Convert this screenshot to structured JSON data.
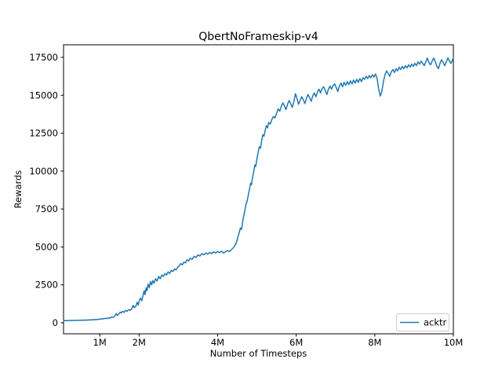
{
  "colors": {
    "accent_line": "#1f77b4",
    "legend_border": "#cccccc",
    "text": "#000000",
    "background": "#ffffff"
  },
  "chart_data": {
    "type": "line",
    "title": "QbertNoFrameskip-v4",
    "xlabel": "Number of Timesteps",
    "ylabel": "Rewards",
    "x_unit": "millions of timesteps",
    "grid": false,
    "xlim": [
      0.078,
      10.0
    ],
    "ylim": [
      -725,
      18328
    ],
    "x_ticks": [
      {
        "v": 1,
        "label": "1M"
      },
      {
        "v": 2,
        "label": "2M"
      },
      {
        "v": 4,
        "label": "4M"
      },
      {
        "v": 6,
        "label": "6M"
      },
      {
        "v": 8,
        "label": "8M"
      },
      {
        "v": 10,
        "label": "10M"
      }
    ],
    "y_ticks": [
      {
        "v": 0,
        "label": "0"
      },
      {
        "v": 2500,
        "label": "2500"
      },
      {
        "v": 5000,
        "label": "5000"
      },
      {
        "v": 7500,
        "label": "7500"
      },
      {
        "v": 10000,
        "label": "10000"
      },
      {
        "v": 12500,
        "label": "12500"
      },
      {
        "v": 15000,
        "label": "15000"
      },
      {
        "v": 17500,
        "label": "17500"
      }
    ],
    "legend": {
      "position": "lower right",
      "entries": [
        {
          "label": "acktr",
          "color": "#1f77b4"
        }
      ]
    },
    "series": [
      {
        "name": "acktr",
        "color": "#1f77b4",
        "points": [
          [
            0.08,
            140
          ],
          [
            0.13,
            150
          ],
          [
            0.18,
            145
          ],
          [
            0.23,
            158
          ],
          [
            0.28,
            152
          ],
          [
            0.33,
            163
          ],
          [
            0.38,
            156
          ],
          [
            0.43,
            170
          ],
          [
            0.48,
            163
          ],
          [
            0.53,
            176
          ],
          [
            0.58,
            168
          ],
          [
            0.63,
            183
          ],
          [
            0.68,
            176
          ],
          [
            0.73,
            196
          ],
          [
            0.78,
            186
          ],
          [
            0.82,
            212
          ],
          [
            0.86,
            196
          ],
          [
            0.9,
            226
          ],
          [
            0.94,
            212
          ],
          [
            0.98,
            246
          ],
          [
            1.02,
            232
          ],
          [
            1.06,
            272
          ],
          [
            1.1,
            252
          ],
          [
            1.14,
            302
          ],
          [
            1.18,
            276
          ],
          [
            1.22,
            332
          ],
          [
            1.26,
            312
          ],
          [
            1.3,
            382
          ],
          [
            1.34,
            352
          ],
          [
            1.38,
            432
          ],
          [
            1.42,
            610
          ],
          [
            1.45,
            480
          ],
          [
            1.48,
            562
          ],
          [
            1.52,
            702
          ],
          [
            1.55,
            642
          ],
          [
            1.58,
            762
          ],
          [
            1.62,
            692
          ],
          [
            1.66,
            822
          ],
          [
            1.7,
            762
          ],
          [
            1.74,
            882
          ],
          [
            1.78,
            822
          ],
          [
            1.82,
            952
          ],
          [
            1.85,
            1150
          ],
          [
            1.88,
            1000
          ],
          [
            1.92,
            1102
          ],
          [
            1.95,
            1352
          ],
          [
            1.98,
            1182
          ],
          [
            2.01,
            1500
          ],
          [
            2.04,
            1620
          ],
          [
            2.07,
            1452
          ],
          [
            2.1,
            1800
          ],
          [
            2.13,
            2120
          ],
          [
            2.15,
            1852
          ],
          [
            2.18,
            2302
          ],
          [
            2.2,
            2102
          ],
          [
            2.23,
            2552
          ],
          [
            2.26,
            2302
          ],
          [
            2.29,
            2722
          ],
          [
            2.32,
            2502
          ],
          [
            2.35,
            2782
          ],
          [
            2.38,
            2602
          ],
          [
            2.42,
            2902
          ],
          [
            2.46,
            2752
          ],
          [
            2.5,
            3052
          ],
          [
            2.54,
            2902
          ],
          [
            2.58,
            3152
          ],
          [
            2.62,
            3052
          ],
          [
            2.66,
            3252
          ],
          [
            2.7,
            3152
          ],
          [
            2.74,
            3352
          ],
          [
            2.78,
            3252
          ],
          [
            2.82,
            3452
          ],
          [
            2.86,
            3382
          ],
          [
            2.9,
            3552
          ],
          [
            2.94,
            3482
          ],
          [
            2.98,
            3652
          ],
          [
            3.02,
            3752
          ],
          [
            3.06,
            3902
          ],
          [
            3.1,
            3822
          ],
          [
            3.14,
            4002
          ],
          [
            3.18,
            3952
          ],
          [
            3.22,
            4152
          ],
          [
            3.26,
            4082
          ],
          [
            3.3,
            4252
          ],
          [
            3.35,
            4182
          ],
          [
            3.4,
            4382
          ],
          [
            3.45,
            4302
          ],
          [
            3.5,
            4482
          ],
          [
            3.55,
            4402
          ],
          [
            3.6,
            4562
          ],
          [
            3.65,
            4482
          ],
          [
            3.7,
            4602
          ],
          [
            3.75,
            4522
          ],
          [
            3.8,
            4642
          ],
          [
            3.85,
            4562
          ],
          [
            3.9,
            4682
          ],
          [
            3.95,
            4602
          ],
          [
            4.0,
            4702
          ],
          [
            4.05,
            4622
          ],
          [
            4.1,
            4722
          ],
          [
            4.15,
            4602
          ],
          [
            4.2,
            4682
          ],
          [
            4.25,
            4762
          ],
          [
            4.3,
            4702
          ],
          [
            4.35,
            4822
          ],
          [
            4.4,
            4952
          ],
          [
            4.44,
            5102
          ],
          [
            4.48,
            5302
          ],
          [
            4.52,
            5702
          ],
          [
            4.55,
            5952
          ],
          [
            4.58,
            6252
          ],
          [
            4.61,
            6152
          ],
          [
            4.64,
            6702
          ],
          [
            4.67,
            7102
          ],
          [
            4.7,
            7502
          ],
          [
            4.73,
            7902
          ],
          [
            4.75,
            7982
          ],
          [
            4.78,
            8402
          ],
          [
            4.81,
            8802
          ],
          [
            4.84,
            9202
          ],
          [
            4.86,
            9102
          ],
          [
            4.89,
            9602
          ],
          [
            4.92,
            10002
          ],
          [
            4.95,
            10402
          ],
          [
            4.97,
            10302
          ],
          [
            5.0,
            10802
          ],
          [
            5.03,
            11202
          ],
          [
            5.06,
            11602
          ],
          [
            5.09,
            11502
          ],
          [
            5.12,
            12002
          ],
          [
            5.15,
            12402
          ],
          [
            5.18,
            12302
          ],
          [
            5.21,
            12702
          ],
          [
            5.24,
            13002
          ],
          [
            5.27,
            12852
          ],
          [
            5.3,
            13202
          ],
          [
            5.34,
            13102
          ],
          [
            5.38,
            13402
          ],
          [
            5.42,
            13602
          ],
          [
            5.46,
            13502
          ],
          [
            5.5,
            13802
          ],
          [
            5.54,
            14102
          ],
          [
            5.58,
            13952
          ],
          [
            5.62,
            14252
          ],
          [
            5.66,
            14502
          ],
          [
            5.7,
            14302
          ],
          [
            5.74,
            14052
          ],
          [
            5.78,
            14402
          ],
          [
            5.82,
            14652
          ],
          [
            5.86,
            14452
          ],
          [
            5.9,
            14202
          ],
          [
            5.94,
            14552
          ],
          [
            5.98,
            15102
          ],
          [
            6.02,
            14802
          ],
          [
            6.06,
            14402
          ],
          [
            6.1,
            14652
          ],
          [
            6.14,
            14902
          ],
          [
            6.18,
            14702
          ],
          [
            6.22,
            14452
          ],
          [
            6.26,
            14802
          ],
          [
            6.3,
            15052
          ],
          [
            6.34,
            14852
          ],
          [
            6.38,
            14602
          ],
          [
            6.42,
            14952
          ],
          [
            6.46,
            15152
          ],
          [
            6.5,
            14902
          ],
          [
            6.54,
            15202
          ],
          [
            6.58,
            15402
          ],
          [
            6.62,
            15152
          ],
          [
            6.66,
            15452
          ],
          [
            6.7,
            15552
          ],
          [
            6.74,
            15302
          ],
          [
            6.78,
            15052
          ],
          [
            6.82,
            15402
          ],
          [
            6.86,
            15602
          ],
          [
            6.9,
            15402
          ],
          [
            6.94,
            15652
          ],
          [
            6.98,
            15752
          ],
          [
            7.02,
            15502
          ],
          [
            7.06,
            15252
          ],
          [
            7.1,
            15602
          ],
          [
            7.14,
            15802
          ],
          [
            7.18,
            15552
          ],
          [
            7.22,
            15852
          ],
          [
            7.26,
            15652
          ],
          [
            7.3,
            15902
          ],
          [
            7.34,
            15702
          ],
          [
            7.38,
            15952
          ],
          [
            7.42,
            15752
          ],
          [
            7.46,
            16002
          ],
          [
            7.5,
            15802
          ],
          [
            7.54,
            16052
          ],
          [
            7.58,
            15852
          ],
          [
            7.62,
            16102
          ],
          [
            7.66,
            15902
          ],
          [
            7.7,
            16152
          ],
          [
            7.74,
            16052
          ],
          [
            7.78,
            16252
          ],
          [
            7.82,
            16102
          ],
          [
            7.86,
            16302
          ],
          [
            7.9,
            16152
          ],
          [
            7.94,
            16352
          ],
          [
            7.98,
            16202
          ],
          [
            8.02,
            16402
          ],
          [
            8.06,
            16102
          ],
          [
            8.1,
            15402
          ],
          [
            8.14,
            14952
          ],
          [
            8.18,
            15252
          ],
          [
            8.22,
            15902
          ],
          [
            8.26,
            16352
          ],
          [
            8.3,
            16602
          ],
          [
            8.34,
            16452
          ],
          [
            8.38,
            16252
          ],
          [
            8.42,
            16552
          ],
          [
            8.46,
            16702
          ],
          [
            8.5,
            16502
          ],
          [
            8.54,
            16752
          ],
          [
            8.58,
            16602
          ],
          [
            8.62,
            16852
          ],
          [
            8.66,
            16702
          ],
          [
            8.7,
            16902
          ],
          [
            8.74,
            16752
          ],
          [
            8.78,
            16952
          ],
          [
            8.82,
            16802
          ],
          [
            8.86,
            17002
          ],
          [
            8.9,
            16852
          ],
          [
            8.94,
            17052
          ],
          [
            8.98,
            16902
          ],
          [
            9.02,
            17102
          ],
          [
            9.06,
            16952
          ],
          [
            9.1,
            17202
          ],
          [
            9.14,
            17052
          ],
          [
            9.18,
            17252
          ],
          [
            9.22,
            17102
          ],
          [
            9.26,
            16952
          ],
          [
            9.3,
            17202
          ],
          [
            9.34,
            17452
          ],
          [
            9.38,
            17152
          ],
          [
            9.42,
            17002
          ],
          [
            9.46,
            17252
          ],
          [
            9.5,
            17452
          ],
          [
            9.54,
            17202
          ],
          [
            9.58,
            16902
          ],
          [
            9.62,
            16752
          ],
          [
            9.66,
            17102
          ],
          [
            9.7,
            17352
          ],
          [
            9.74,
            17152
          ],
          [
            9.78,
            16952
          ],
          [
            9.82,
            17202
          ],
          [
            9.86,
            17452
          ],
          [
            9.9,
            17252
          ],
          [
            9.94,
            17102
          ],
          [
            9.98,
            17352
          ],
          [
            10.0,
            17452
          ]
        ]
      }
    ]
  }
}
